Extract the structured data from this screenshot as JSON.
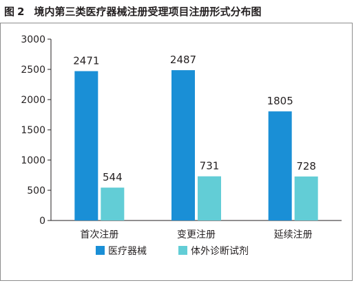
{
  "figure": {
    "label": "图",
    "number": "2",
    "title": "境内第三类医疗器械注册受理项目注册形式分布图"
  },
  "colors": {
    "series0": "#1a8fd6",
    "series1": "#62cdd6",
    "axis": "#231f20",
    "frame": "#8c8c8c"
  },
  "chart_data": {
    "type": "bar",
    "title": "境内第三类医疗器械注册受理项目注册形式分布图",
    "categories": [
      "首次注册",
      "变更注册",
      "延续注册"
    ],
    "series": [
      {
        "name": "医疗器械",
        "values": [
          2471,
          2487,
          1805
        ]
      },
      {
        "name": "体外诊断试剂",
        "values": [
          544,
          731,
          728
        ]
      }
    ],
    "ylim": [
      0,
      3000
    ],
    "yticks": [
      0,
      500,
      1000,
      1500,
      2000,
      2500,
      3000
    ],
    "xlabel": "",
    "ylabel": "",
    "grid": false,
    "legend_position": "bottom"
  }
}
